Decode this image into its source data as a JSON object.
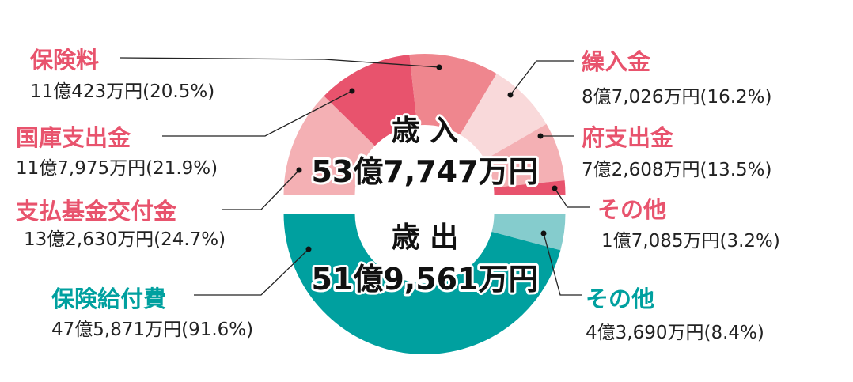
{
  "chart_data": [
    {
      "type": "pie",
      "title": "歳 入",
      "total": "53億7,747万円",
      "slices": [
        {
          "label": "支払基金交付金",
          "amount": "13億2,630万円",
          "pct_text": "(24.7%)",
          "value": 24.7,
          "color": "#f4b0b4"
        },
        {
          "label": "国庫支出金",
          "amount": "11億7,975万円",
          "pct_text": "(21.9%)",
          "value": 21.9,
          "color": "#e8536d"
        },
        {
          "label": "保険料",
          "amount": "11億423万円",
          "pct_text": "(20.5%)",
          "value": 20.5,
          "color": "#ef868e"
        },
        {
          "label": "繰入金",
          "amount": "8億7,026万円",
          "pct_text": "(16.2%)",
          "value": 16.2,
          "color": "#f9d9da"
        },
        {
          "label": "府支出金",
          "amount": "7億2,608万円",
          "pct_text": "(13.5%)",
          "value": 13.5,
          "color": "#f4b0b4"
        },
        {
          "label": "その他",
          "amount": "1億7,085万円",
          "pct_text": "(3.2%)",
          "value": 3.2,
          "color": "#e8536d"
        }
      ],
      "label_color": "#e8536d"
    },
    {
      "type": "pie",
      "title": "歳 出",
      "total": "51億9,561万円",
      "slices": [
        {
          "label": "その他",
          "amount": "4億3,690万円",
          "pct_text": "(8.4%)",
          "value": 8.4,
          "color": "#85cccd"
        },
        {
          "label": "保険給付費",
          "amount": "47億5,871万円",
          "pct_text": "(91.6%)",
          "value": 91.6,
          "color": "#00a09f"
        }
      ],
      "label_color": "#00a09f"
    }
  ]
}
